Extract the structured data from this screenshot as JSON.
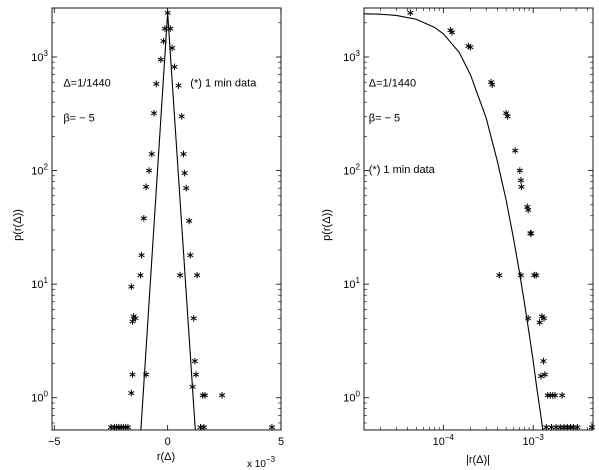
{
  "chart_data": [
    {
      "type": "scatter",
      "xlabel": "r(Δ)",
      "ylabel": "p(r(Δ))",
      "x_multiplier": "x 10",
      "x_multiplier_exp": "−3",
      "xlim": [
        -5.1,
        5.0
      ],
      "ylim": [
        0.52,
        2700
      ],
      "y_scale": "log",
      "x_ticks": [
        {
          "value": -5,
          "label": "−5"
        },
        {
          "value": 0,
          "label": "0"
        },
        {
          "value": 5,
          "label": "5"
        }
      ],
      "y_ticks": [
        {
          "value": 1,
          "base": "10",
          "exp": "0"
        },
        {
          "value": 10,
          "base": "10",
          "exp": "1"
        },
        {
          "value": 100,
          "base": "10",
          "exp": "2"
        },
        {
          "value": 1000,
          "base": "10",
          "exp": "3"
        }
      ],
      "annotations": [
        {
          "text": "Δ=1/1440",
          "ax": -4.6,
          "ay": 550
        },
        {
          "text": "β= − 5",
          "ax": -4.6,
          "ay": 270
        },
        {
          "text": "(*) 1 min data",
          "ax": 1.0,
          "ay": 550
        }
      ],
      "series": [
        {
          "kind": "points",
          "marker": "*",
          "points": [
            [
              0.0,
              2450
            ],
            [
              -0.12,
              1780
            ],
            [
              0.12,
              1780
            ],
            [
              -0.18,
              1380
            ],
            [
              0.2,
              1200
            ],
            [
              -0.3,
              950
            ],
            [
              0.3,
              820
            ],
            [
              -0.5,
              580
            ],
            [
              0.48,
              560
            ],
            [
              -0.6,
              320
            ],
            [
              0.62,
              300
            ],
            [
              -0.7,
              140
            ],
            [
              0.7,
              140
            ],
            [
              -0.82,
              100
            ],
            [
              0.75,
              95
            ],
            [
              -0.95,
              72
            ],
            [
              0.82,
              70
            ],
            [
              -1.05,
              38
            ],
            [
              0.95,
              36
            ],
            [
              -1.15,
              18
            ],
            [
              1.0,
              18
            ],
            [
              -1.2,
              12
            ],
            [
              0.55,
              12
            ],
            [
              1.3,
              12
            ],
            [
              -1.6,
              9.5
            ],
            [
              -1.5,
              5.2
            ],
            [
              -1.42,
              5.0
            ],
            [
              -1.55,
              4.7
            ],
            [
              1.15,
              5.0
            ],
            [
              1.2,
              2.1
            ],
            [
              1.25,
              1.6
            ],
            [
              -1.55,
              1.6
            ],
            [
              -0.95,
              1.6
            ],
            [
              1.1,
              1.25
            ],
            [
              -1.6,
              1.1
            ],
            [
              1.55,
              1.05
            ],
            [
              1.65,
              1.05
            ],
            [
              2.4,
              1.05
            ],
            [
              -2.5,
              0.55
            ],
            [
              -2.35,
              0.55
            ],
            [
              -2.25,
              0.55
            ],
            [
              -2.15,
              0.55
            ],
            [
              -2.05,
              0.55
            ],
            [
              -1.95,
              0.55
            ],
            [
              -1.85,
              0.55
            ],
            [
              -1.75,
              0.55
            ],
            [
              1.45,
              0.55
            ],
            [
              1.6,
              0.55
            ],
            [
              4.6,
              0.55
            ]
          ]
        },
        {
          "kind": "line",
          "points": [
            [
              -1.18,
              0.52
            ],
            [
              0.0,
              2450
            ],
            [
              1.22,
              0.52
            ]
          ]
        }
      ]
    },
    {
      "type": "scatter",
      "xlabel": "|r(Δ)|",
      "ylabel": "p(r(Δ))",
      "xlim": [
        1.31e-05,
        0.00463
      ],
      "ylim": [
        0.52,
        2700
      ],
      "x_scale": "log",
      "y_scale": "log",
      "x_ticks": [
        {
          "value": 0.0001,
          "base": "10",
          "exp": "−4"
        },
        {
          "value": 0.001,
          "base": "10",
          "exp": "−3"
        }
      ],
      "y_ticks": [
        {
          "value": 1,
          "base": "10",
          "exp": "0"
        },
        {
          "value": 10,
          "base": "10",
          "exp": "1"
        },
        {
          "value": 100,
          "base": "10",
          "exp": "2"
        },
        {
          "value": 1000,
          "base": "10",
          "exp": "3"
        }
      ],
      "annotations": [
        {
          "text": "Δ=1/1440",
          "ax": 1.48e-05,
          "ay": 550
        },
        {
          "text": "β= − 5",
          "ax": 1.48e-05,
          "ay": 270
        },
        {
          "text": "(*) 1 min data",
          "ax": 1.48e-05,
          "ay": 95
        }
      ],
      "series": [
        {
          "kind": "points",
          "marker": "*",
          "points": [
            [
              4.3e-05,
              2450
            ],
            [
              0.00012,
              1720
            ],
            [
              0.000125,
              1650
            ],
            [
              0.00019,
              1250
            ],
            [
              0.0002,
              1220
            ],
            [
              0.00034,
              600
            ],
            [
              0.00035,
              570
            ],
            [
              0.0005,
              320
            ],
            [
              0.00052,
              300
            ],
            [
              0.00063,
              150
            ],
            [
              0.00071,
              100
            ],
            [
              0.00073,
              82
            ],
            [
              0.00074,
              72
            ],
            [
              0.00086,
              48
            ],
            [
              0.00088,
              45
            ],
            [
              0.00093,
              28
            ],
            [
              0.00095,
              28
            ],
            [
              0.00103,
              12
            ],
            [
              0.00108,
              12
            ],
            [
              0.00042,
              12
            ],
            [
              0.00073,
              12
            ],
            [
              0.00088,
              5.0
            ],
            [
              0.00125,
              5.2
            ],
            [
              0.00132,
              5.0
            ],
            [
              0.00118,
              4.6
            ],
            [
              0.0013,
              2.1
            ],
            [
              0.00122,
              1.55
            ],
            [
              0.00135,
              1.6
            ],
            [
              0.00145,
              1.05
            ],
            [
              0.00155,
              1.05
            ],
            [
              0.00165,
              1.05
            ],
            [
              0.00175,
              1.05
            ],
            [
              0.0021,
              1.05
            ],
            [
              0.0014,
              0.55
            ],
            [
              0.0016,
              0.55
            ],
            [
              0.0018,
              0.55
            ],
            [
              0.002,
              0.55
            ],
            [
              0.0022,
              0.55
            ],
            [
              0.0024,
              0.55
            ],
            [
              0.0026,
              0.55
            ],
            [
              0.0028,
              0.55
            ],
            [
              0.0031,
              0.55
            ],
            [
              0.0045,
              0.55
            ]
          ]
        },
        {
          "kind": "line",
          "points": [
            [
              1.31e-05,
              2400
            ],
            [
              2e-05,
              2380
            ],
            [
              3e-05,
              2320
            ],
            [
              5e-05,
              2150
            ],
            [
              8e-05,
              1820
            ],
            [
              0.0001,
              1600
            ],
            [
              0.00015,
              1100
            ],
            [
              0.0002,
              700
            ],
            [
              0.0003,
              290
            ],
            [
              0.0004,
              120
            ],
            [
              0.0005,
              55
            ],
            [
              0.0006,
              26
            ],
            [
              0.0007,
              13
            ],
            [
              0.0008,
              6.8
            ],
            [
              0.0009,
              3.7
            ],
            [
              0.001,
              2.1
            ],
            [
              0.0011,
              1.2
            ],
            [
              0.0012,
              0.75
            ],
            [
              0.00128,
              0.52
            ]
          ]
        }
      ]
    }
  ]
}
